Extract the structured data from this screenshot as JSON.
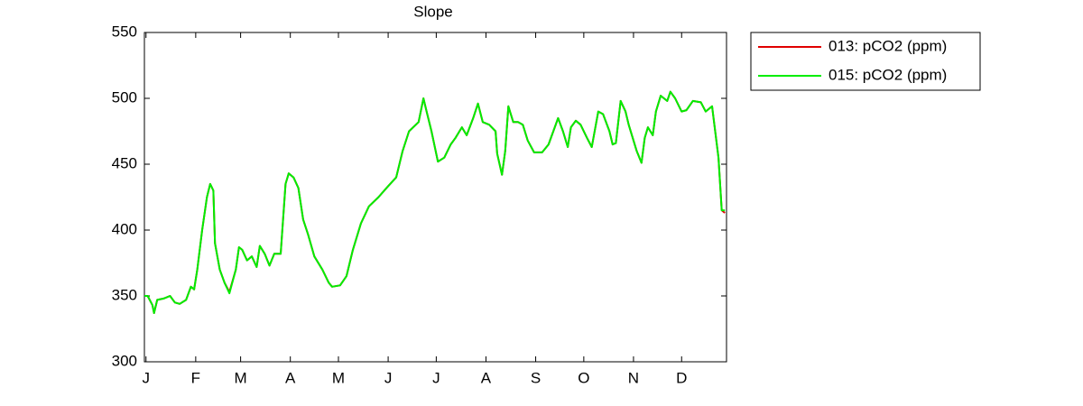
{
  "chart_data": {
    "type": "line",
    "title": "Slope",
    "x": [
      0,
      2,
      5,
      6,
      8,
      12,
      16,
      19,
      22,
      26,
      29,
      31,
      33,
      36,
      39,
      41,
      43,
      44,
      47,
      50,
      53,
      57,
      59,
      61,
      64,
      67,
      70,
      72,
      75,
      78,
      81,
      85,
      88,
      90,
      93,
      96,
      99,
      102,
      106,
      111,
      115,
      117,
      122,
      126,
      130,
      135,
      140,
      146,
      151,
      157,
      161,
      165,
      171,
      174,
      176,
      179,
      183,
      187,
      191,
      194,
      198,
      201,
      205,
      208,
      211,
      215,
      219,
      220,
      223,
      225,
      227,
      230,
      233,
      236,
      239,
      243,
      248,
      252,
      258,
      261,
      264,
      266,
      269,
      272,
      276,
      279,
      283,
      286,
      290,
      292,
      294,
      297,
      300,
      302,
      307,
      310,
      312,
      314,
      317,
      319,
      322,
      326,
      328,
      331,
      335,
      338,
      342,
      347,
      350,
      354,
      358,
      360,
      362
    ],
    "series": [
      {
        "name": "013: pCO2 (ppm)",
        "color": "#e00000",
        "values": [
          350,
          350,
          343,
          337,
          347,
          348,
          350,
          345,
          344,
          347,
          357,
          355,
          370,
          400,
          425,
          435,
          430,
          390,
          370,
          360,
          353,
          370,
          387,
          385,
          377,
          380,
          372,
          388,
          382,
          373,
          382,
          382,
          435,
          443,
          440,
          432,
          408,
          397,
          380,
          370,
          360,
          357,
          358,
          365,
          385,
          405,
          418,
          425,
          432,
          440,
          460,
          475,
          482,
          500,
          490,
          475,
          452,
          455,
          465,
          470,
          478,
          472,
          485,
          496,
          482,
          480,
          475,
          458,
          442,
          460,
          494,
          482,
          482,
          480,
          468,
          459,
          459,
          465,
          485,
          475,
          463,
          478,
          483,
          480,
          470,
          463,
          490,
          488,
          475,
          465,
          466,
          498,
          490,
          480,
          460,
          451,
          470,
          478,
          472,
          490,
          502,
          498,
          505,
          500,
          490,
          491,
          498,
          497,
          490,
          494,
          455,
          415,
          413
        ]
      },
      {
        "name": "015: pCO2 (ppm)",
        "color": "#00ee00",
        "values": [
          350,
          350,
          343,
          337,
          347,
          348,
          350,
          345,
          344,
          347,
          357,
          355,
          370,
          400,
          425,
          435,
          430,
          390,
          370,
          360,
          352,
          370,
          387,
          385,
          377,
          380,
          372,
          388,
          382,
          373,
          382,
          382,
          435,
          443,
          440,
          432,
          408,
          397,
          380,
          370,
          360,
          357,
          358,
          365,
          385,
          405,
          418,
          425,
          432,
          440,
          460,
          475,
          482,
          500,
          490,
          475,
          452,
          455,
          465,
          470,
          478,
          472,
          485,
          496,
          482,
          480,
          475,
          458,
          442,
          460,
          494,
          482,
          482,
          480,
          468,
          459,
          459,
          465,
          485,
          475,
          463,
          478,
          483,
          480,
          470,
          463,
          490,
          488,
          475,
          465,
          466,
          498,
          490,
          480,
          460,
          451,
          470,
          478,
          472,
          490,
          502,
          498,
          505,
          500,
          490,
          491,
          498,
          497,
          490,
          494,
          455,
          415,
          415
        ]
      }
    ],
    "xlim": [
      0,
      363
    ],
    "xticks": [
      {
        "value": 1,
        "label": "J"
      },
      {
        "value": 32,
        "label": "F"
      },
      {
        "value": 60,
        "label": "M"
      },
      {
        "value": 91,
        "label": "A"
      },
      {
        "value": 121,
        "label": "M"
      },
      {
        "value": 152,
        "label": "J"
      },
      {
        "value": 182,
        "label": "J"
      },
      {
        "value": 213,
        "label": "A"
      },
      {
        "value": 244,
        "label": "S"
      },
      {
        "value": 274,
        "label": "O"
      },
      {
        "value": 305,
        "label": "N"
      },
      {
        "value": 335,
        "label": "D"
      }
    ],
    "ylim": [
      300,
      550
    ],
    "yticks": [
      300,
      350,
      400,
      450,
      500,
      550
    ],
    "grid": false,
    "legend": "outside-right"
  }
}
